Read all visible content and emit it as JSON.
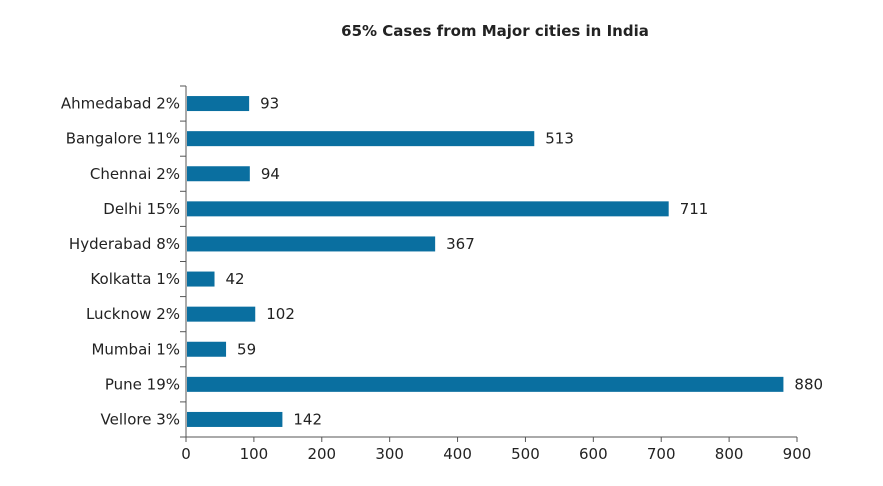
{
  "chart_data": {
    "type": "bar",
    "orientation": "horizontal",
    "title": "65% Cases from Major cities in India",
    "xlabel": "",
    "ylabel": "",
    "categories": [
      "Ahmedabad 2%",
      "Bangalore 11%",
      "Chennai 2%",
      "Delhi 15%",
      "Hyderabad 8%",
      "Kolkatta 1%",
      "Lucknow 2%",
      "Mumbai 1%",
      "Pune 19%",
      "Vellore 3%"
    ],
    "values": [
      93,
      513,
      94,
      711,
      367,
      42,
      102,
      59,
      880,
      142
    ],
    "xlim": [
      0,
      900
    ],
    "xticks": [
      0,
      100,
      200,
      300,
      400,
      500,
      600,
      700,
      800,
      900
    ],
    "grid": false,
    "bar_color": "#0a6fa0"
  }
}
